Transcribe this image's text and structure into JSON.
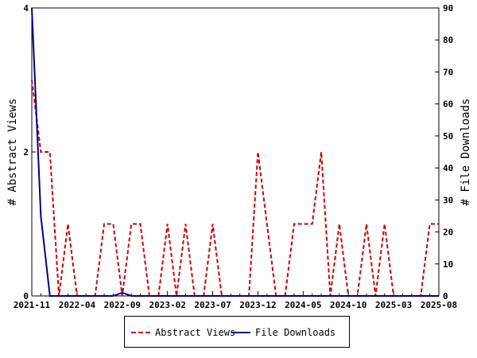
{
  "chart_data": {
    "type": "line",
    "x": [
      "2021-11",
      "2021-12",
      "2022-01",
      "2022-02",
      "2022-03",
      "2022-04",
      "2022-05",
      "2022-06",
      "2022-07",
      "2022-08",
      "2022-09",
      "2022-10",
      "2022-11",
      "2022-12",
      "2023-01",
      "2023-02",
      "2023-03",
      "2023-04",
      "2023-05",
      "2023-06",
      "2023-07",
      "2023-08",
      "2023-09",
      "2023-10",
      "2023-11",
      "2023-12",
      "2024-01",
      "2024-02",
      "2024-03",
      "2024-04",
      "2024-05",
      "2024-06",
      "2024-07",
      "2024-08",
      "2024-09",
      "2024-10",
      "2024-11",
      "2024-12",
      "2025-01",
      "2025-02",
      "2025-03",
      "2025-04",
      "2025-05",
      "2025-06",
      "2025-07",
      "2025-08"
    ],
    "x_ticks": [
      "2021-11",
      "2022-04",
      "2022-09",
      "2023-02",
      "2023-07",
      "2023-12",
      "2024-05",
      "2024-10",
      "2025-03",
      "2025-08"
    ],
    "series": [
      {
        "name": "Abstract Views",
        "axis": "left",
        "color": "#cc0000",
        "dash": "dashed",
        "values": [
          3,
          2,
          2,
          0,
          1,
          0,
          0,
          0,
          1,
          1,
          0,
          1,
          1,
          0,
          0,
          1,
          0,
          1,
          0,
          0,
          1,
          0,
          0,
          0,
          0,
          2,
          1,
          0,
          0,
          1,
          1,
          1,
          2,
          0,
          1,
          0,
          0,
          1,
          0,
          1,
          0,
          0,
          0,
          0,
          1,
          1
        ]
      },
      {
        "name": "File Downloads",
        "axis": "right",
        "color": "#00008b",
        "dash": "solid",
        "values": [
          90,
          25,
          0,
          0,
          0,
          0,
          0,
          0,
          0,
          0,
          1,
          0,
          0,
          0,
          0,
          0,
          0,
          0,
          0,
          0,
          0,
          0,
          0,
          0,
          0,
          0,
          0,
          0,
          0,
          0,
          0,
          0,
          0,
          0,
          0,
          0,
          0,
          0,
          0,
          0,
          0,
          0,
          0,
          0,
          0,
          0
        ]
      }
    ],
    "y_left": {
      "label": "# Abstract Views",
      "lim": [
        0,
        4
      ],
      "ticks": [
        0,
        2,
        4
      ]
    },
    "y_right": {
      "label": "# File Downloads",
      "lim": [
        0,
        90
      ],
      "ticks": [
        0,
        10,
        20,
        30,
        40,
        50,
        60,
        70,
        80,
        90
      ]
    },
    "grid": false,
    "legend": "bottom"
  },
  "legend": {
    "items": [
      "Abstract Views",
      "File Downloads"
    ]
  }
}
